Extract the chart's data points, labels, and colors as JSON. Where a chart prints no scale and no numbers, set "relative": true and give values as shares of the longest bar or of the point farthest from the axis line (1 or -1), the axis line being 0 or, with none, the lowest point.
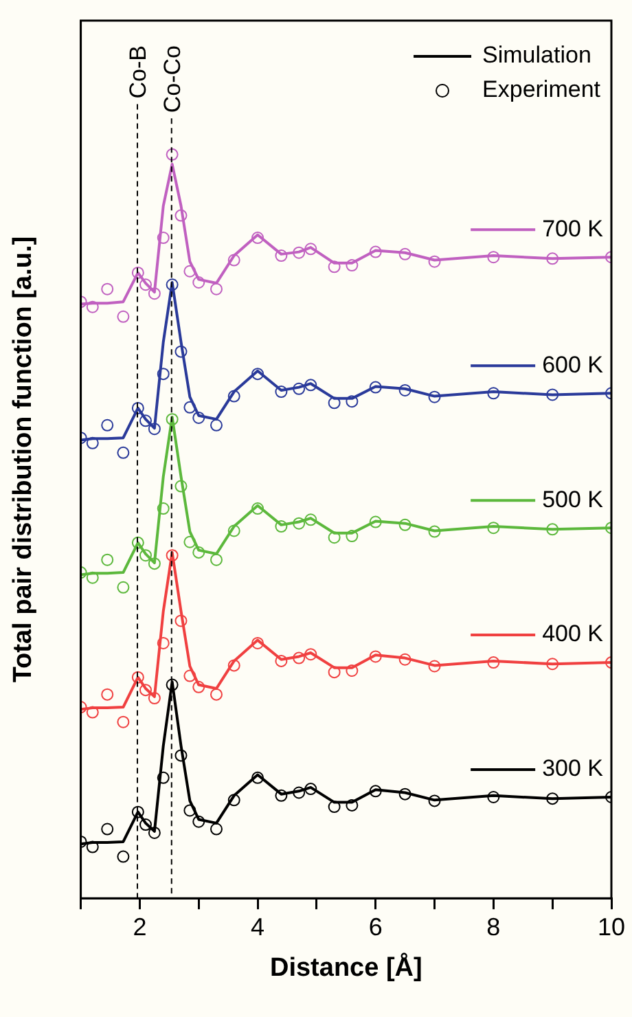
{
  "chart_data": {
    "type": "line",
    "xlabel": "Distance [Å]",
    "ylabel": "Total pair distribution function [a.u.]",
    "relative": true,
    "x": [
      1.0,
      1.2,
      1.45,
      1.72,
      1.97,
      2.1,
      2.25,
      2.4,
      2.55,
      2.7,
      2.85,
      3.0,
      3.3,
      3.6,
      4.0,
      4.4,
      4.7,
      4.9,
      5.3,
      5.6,
      6.0,
      6.5,
      7.0,
      8.0,
      9.0,
      10.0
    ],
    "xlim": [
      1,
      10
    ],
    "xticks": [
      {
        "value": 1,
        "label": null
      },
      2,
      {
        "value": 3,
        "label": null
      },
      4,
      {
        "value": 5,
        "label": null
      },
      6,
      {
        "value": 7,
        "label": null
      },
      8,
      {
        "value": 9,
        "label": null
      },
      10
    ],
    "grid": false,
    "legend": "top right",
    "annotations": [
      "Simulation",
      "Experiment"
    ],
    "ref_lines": [
      {
        "axis": "x",
        "value": 1.96,
        "label": "Co-B",
        "color": "#000000",
        "line_style": "dashed"
      },
      {
        "axis": "x",
        "value": 2.54,
        "label": "Co-Co",
        "color": "#000000",
        "line_style": "dashed"
      }
    ],
    "series": [
      {
        "name": "700 K",
        "type": "line",
        "marker": "none",
        "color": "#c060c0",
        "values": [
          0.799,
          0.8,
          0.8,
          0.802,
          0.841,
          0.827,
          0.815,
          0.931,
          0.987,
          0.931,
          0.856,
          0.832,
          0.827,
          0.864,
          0.892,
          0.866,
          0.869,
          0.875,
          0.854,
          0.854,
          0.871,
          0.868,
          0.858,
          0.864,
          0.86,
          0.862
        ]
      },
      {
        "type": "scatter",
        "marker": "circle",
        "color": "#c060c0",
        "values": [
          0.802,
          0.795,
          0.819,
          0.782,
          0.841,
          0.825,
          0.813,
          0.888,
          1,
          0.918,
          0.843,
          0.828,
          0.819,
          0.858,
          0.888,
          0.864,
          0.868,
          0.873,
          0.849,
          0.851,
          0.869,
          0.866,
          0.856,
          0.862,
          0.86,
          0.862
        ]
      },
      {
        "name": "600 K",
        "type": "line",
        "marker": "none",
        "color": "#2a3a9a",
        "values": [
          0.616,
          0.618,
          0.618,
          0.619,
          0.659,
          0.644,
          0.632,
          0.748,
          0.828,
          0.748,
          0.674,
          0.649,
          0.644,
          0.681,
          0.709,
          0.683,
          0.687,
          0.692,
          0.672,
          0.672,
          0.688,
          0.685,
          0.675,
          0.681,
          0.677,
          0.679
        ]
      },
      {
        "type": "scatter",
        "marker": "circle",
        "color": "#2a3a9a",
        "values": [
          0.619,
          0.612,
          0.636,
          0.599,
          0.659,
          0.642,
          0.631,
          0.705,
          0.825,
          0.735,
          0.66,
          0.646,
          0.636,
          0.675,
          0.705,
          0.681,
          0.685,
          0.69,
          0.666,
          0.668,
          0.687,
          0.683,
          0.674,
          0.679,
          0.677,
          0.679
        ]
      },
      {
        "name": "500 K",
        "type": "line",
        "marker": "none",
        "color": "#5cb83c",
        "values": [
          0.435,
          0.437,
          0.437,
          0.438,
          0.478,
          0.463,
          0.451,
          0.567,
          0.647,
          0.567,
          0.493,
          0.468,
          0.463,
          0.5,
          0.528,
          0.502,
          0.506,
          0.511,
          0.491,
          0.491,
          0.507,
          0.504,
          0.494,
          0.5,
          0.496,
          0.498
        ]
      },
      {
        "type": "scatter",
        "marker": "circle",
        "color": "#5cb83c",
        "values": [
          0.438,
          0.431,
          0.455,
          0.418,
          0.478,
          0.461,
          0.45,
          0.524,
          0.644,
          0.554,
          0.479,
          0.465,
          0.455,
          0.494,
          0.524,
          0.5,
          0.504,
          0.509,
          0.485,
          0.487,
          0.506,
          0.502,
          0.493,
          0.498,
          0.496,
          0.498
        ]
      },
      {
        "name": "400 K",
        "type": "line",
        "marker": "none",
        "color": "#f04040",
        "values": [
          0.254,
          0.256,
          0.256,
          0.257,
          0.297,
          0.282,
          0.271,
          0.386,
          0.465,
          0.386,
          0.312,
          0.287,
          0.282,
          0.319,
          0.347,
          0.321,
          0.325,
          0.33,
          0.31,
          0.31,
          0.327,
          0.323,
          0.313,
          0.319,
          0.315,
          0.317
        ]
      },
      {
        "type": "scatter",
        "marker": "circle",
        "color": "#f04040",
        "values": [
          0.257,
          0.25,
          0.274,
          0.237,
          0.297,
          0.28,
          0.269,
          0.343,
          0.461,
          0.373,
          0.299,
          0.284,
          0.274,
          0.313,
          0.343,
          0.319,
          0.323,
          0.328,
          0.304,
          0.306,
          0.325,
          0.321,
          0.312,
          0.317,
          0.315,
          0.317
        ]
      },
      {
        "name": "300 K",
        "type": "line",
        "marker": "none",
        "color": "#000000",
        "values": [
          0.073,
          0.075,
          0.075,
          0.076,
          0.116,
          0.101,
          0.09,
          0.205,
          0.291,
          0.205,
          0.131,
          0.106,
          0.101,
          0.138,
          0.166,
          0.14,
          0.144,
          0.149,
          0.129,
          0.129,
          0.146,
          0.142,
          0.132,
          0.138,
          0.134,
          0.136
        ]
      },
      {
        "type": "scatter",
        "marker": "circle",
        "color": "#000000",
        "values": [
          0.076,
          0.069,
          0.093,
          0.056,
          0.116,
          0.099,
          0.088,
          0.162,
          0.287,
          0.192,
          0.118,
          0.103,
          0.093,
          0.132,
          0.162,
          0.138,
          0.142,
          0.147,
          0.123,
          0.125,
          0.144,
          0.14,
          0.131,
          0.136,
          0.134,
          0.136
        ]
      }
    ]
  }
}
